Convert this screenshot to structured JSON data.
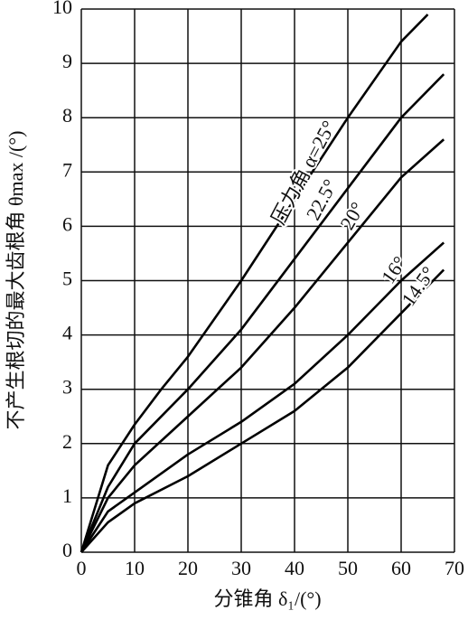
{
  "chart_data": {
    "type": "line",
    "x_label": "分锥角 δ₁/(°)",
    "y_label": "不产生根切的最大齿根角 θmax /(°)",
    "xlim": [
      0,
      70
    ],
    "ylim": [
      0,
      10
    ],
    "xticks": [
      0,
      10,
      20,
      30,
      40,
      50,
      60,
      70
    ],
    "yticks": [
      0,
      1,
      2,
      3,
      4,
      5,
      6,
      7,
      8,
      9,
      10
    ],
    "grid": true,
    "series": [
      {
        "name": "压力角 α=25°",
        "color": "#000000",
        "x": [
          0,
          5,
          10,
          15,
          20,
          30,
          40,
          50,
          60,
          65
        ],
        "values": [
          0,
          1.6,
          2.35,
          3.0,
          3.6,
          5.0,
          6.5,
          8.0,
          9.4,
          9.9
        ]
      },
      {
        "name": "22.5°",
        "color": "#000000",
        "x": [
          0,
          5,
          10,
          20,
          30,
          40,
          50,
          60,
          68
        ],
        "values": [
          0,
          1.2,
          2.0,
          3.0,
          4.1,
          5.4,
          6.7,
          8.0,
          8.8
        ]
      },
      {
        "name": "20°",
        "color": "#000000",
        "x": [
          0,
          5,
          10,
          20,
          30,
          40,
          50,
          60,
          68
        ],
        "values": [
          0,
          1.0,
          1.6,
          2.5,
          3.4,
          4.5,
          5.7,
          6.9,
          7.6
        ]
      },
      {
        "name": "16°",
        "color": "#000000",
        "x": [
          0,
          5,
          10,
          20,
          30,
          40,
          50,
          60,
          68
        ],
        "values": [
          0,
          0.75,
          1.1,
          1.8,
          2.4,
          3.1,
          4.0,
          5.0,
          5.7
        ]
      },
      {
        "name": "14.5°",
        "color": "#000000",
        "x": [
          0,
          5,
          10,
          20,
          30,
          40,
          50,
          60,
          68
        ],
        "values": [
          0,
          0.55,
          0.9,
          1.4,
          2.0,
          2.6,
          3.4,
          4.4,
          5.2
        ]
      }
    ]
  }
}
